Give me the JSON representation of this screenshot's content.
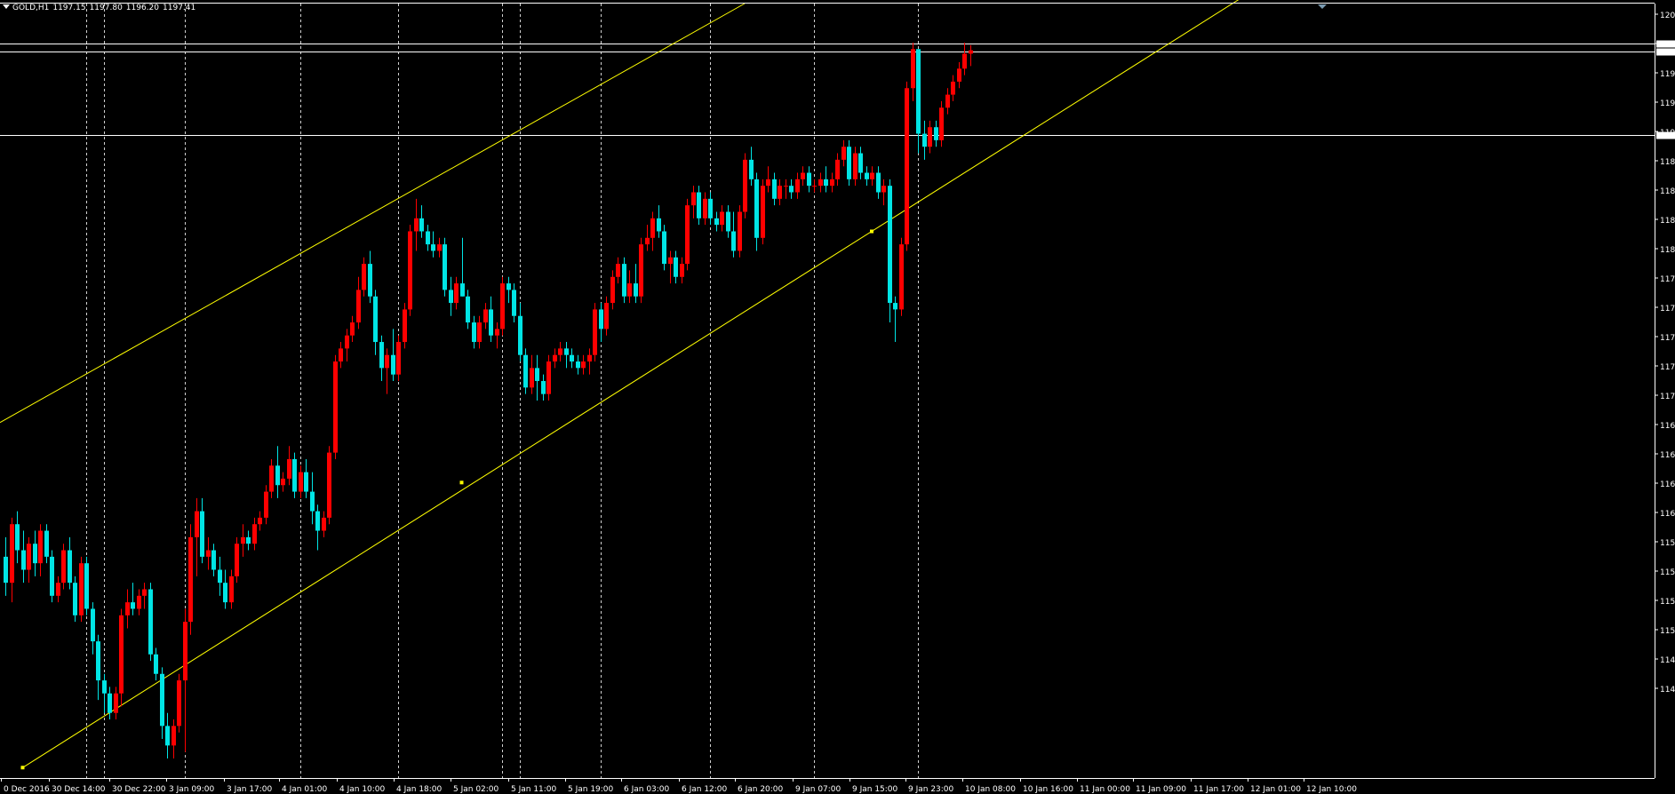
{
  "header": {
    "symbol": "GOLD,H1",
    "open": "1197.15",
    "high": "1197.80",
    "low": "1196.20",
    "close": "1197.41"
  },
  "colors": {
    "background": "#000000",
    "axis": "#ffffff",
    "bull_candle": "#ff0000",
    "bear_candle": "#00e5e5",
    "channel_line": "#ffff00",
    "grid_vertical": "#d0d0d0"
  },
  "chart_data": {
    "type": "candlestick",
    "symbol": "GOLD",
    "timeframe": "H1",
    "ylim": [
      1141.5,
      1201.0
    ],
    "y_tick_labels": [
      "120",
      "119",
      "119",
      "119",
      "119",
      "118",
      "118",
      "118",
      "118",
      "117",
      "117",
      "117",
      "117",
      "117",
      "116",
      "116",
      "116",
      "116",
      "115",
      "115",
      "115",
      "115",
      "114",
      "114"
    ],
    "x_tick_labels": [
      "0 Dec 2016",
      "30 Dec 14:00",
      "30 Dec 22:00",
      "3 Jan 09:00",
      "3 Jan 17:00",
      "4 Jan 01:00",
      "4 Jan 10:00",
      "4 Jan 18:00",
      "5 Jan 02:00",
      "5 Jan 11:00",
      "5 Jan 19:00",
      "6 Jan 03:00",
      "6 Jan 12:00",
      "6 Jan 20:00",
      "9 Jan 07:00",
      "9 Jan 15:00",
      "9 Jan 23:00",
      "10 Jan 08:00",
      "10 Jan 16:00",
      "11 Jan 00:00",
      "11 Jan 09:00",
      "11 Jan 17:00",
      "12 Jan 01:00",
      "12 Jan 10:00"
    ],
    "horizontal_levels": [
      1197.9,
      1197.3,
      1190.9
    ],
    "channel": {
      "lower": {
        "start": [
          3,
          1142.3
        ],
        "end": [
          160,
          1186.3
        ]
      },
      "upper": {
        "start": [
          -25,
          1162.8
        ],
        "end": [
          128,
          1201.0
        ]
      },
      "anchor_point": [
        79,
        1164.2
      ]
    },
    "vertical_session_lines": [
      14,
      17,
      31,
      51,
      68,
      86,
      89,
      103,
      122,
      140,
      158
    ],
    "candles": [
      [
        1158.5,
        1160.0,
        1155.5,
        1156.5
      ],
      [
        1156.5,
        1161.5,
        1155.0,
        1161.0
      ],
      [
        1161.0,
        1162.0,
        1158.0,
        1159.0
      ],
      [
        1159.0,
        1160.5,
        1156.5,
        1157.5
      ],
      [
        1157.5,
        1160.0,
        1156.5,
        1159.5
      ],
      [
        1159.5,
        1160.5,
        1157.0,
        1158.0
      ],
      [
        1158.0,
        1161.0,
        1157.0,
        1160.5
      ],
      [
        1160.5,
        1161.0,
        1158.0,
        1158.5
      ],
      [
        1158.5,
        1159.0,
        1155.0,
        1155.5
      ],
      [
        1155.5,
        1157.0,
        1155.0,
        1156.5
      ],
      [
        1156.5,
        1159.5,
        1156.0,
        1159.0
      ],
      [
        1159.0,
        1160.0,
        1156.0,
        1156.5
      ],
      [
        1156.5,
        1157.0,
        1153.5,
        1154.0
      ],
      [
        1154.0,
        1158.5,
        1153.5,
        1158.0
      ],
      [
        1158.0,
        1158.5,
        1154.0,
        1154.5
      ],
      [
        1154.5,
        1155.0,
        1151.0,
        1152.0
      ],
      [
        1152.0,
        1152.5,
        1147.5,
        1149.0
      ],
      [
        1149.0,
        1149.5,
        1146.5,
        1148.0
      ],
      [
        1148.0,
        1148.5,
        1146.0,
        1146.5
      ],
      [
        1146.5,
        1148.5,
        1146.0,
        1148.0
      ],
      [
        1148.0,
        1154.5,
        1147.0,
        1154.0
      ],
      [
        1154.0,
        1156.0,
        1153.0,
        1155.0
      ],
      [
        1155.0,
        1156.5,
        1154.0,
        1154.5
      ],
      [
        1154.5,
        1156.0,
        1154.0,
        1155.5
      ],
      [
        1155.5,
        1156.5,
        1154.5,
        1156.0
      ],
      [
        1156.0,
        1156.5,
        1150.5,
        1151.0
      ],
      [
        1151.0,
        1151.5,
        1149.0,
        1149.5
      ],
      [
        1149.5,
        1150.0,
        1144.5,
        1145.5
      ],
      [
        1145.5,
        1146.5,
        1143.0,
        1144.0
      ],
      [
        1144.0,
        1146.0,
        1143.0,
        1145.5
      ],
      [
        1145.5,
        1149.5,
        1145.0,
        1149.0
      ],
      [
        1149.0,
        1154.5,
        1143.5,
        1153.5
      ],
      [
        1153.5,
        1161.0,
        1152.5,
        1160.0
      ],
      [
        1160.0,
        1163.0,
        1157.0,
        1162.0
      ],
      [
        1162.0,
        1163.0,
        1158.0,
        1158.5
      ],
      [
        1158.5,
        1160.0,
        1157.5,
        1159.0
      ],
      [
        1159.0,
        1159.5,
        1157.0,
        1157.5
      ],
      [
        1157.5,
        1158.5,
        1155.5,
        1156.5
      ],
      [
        1156.5,
        1157.5,
        1154.5,
        1155.0
      ],
      [
        1155.0,
        1157.5,
        1154.5,
        1157.0
      ],
      [
        1157.0,
        1160.0,
        1156.5,
        1159.5
      ],
      [
        1159.5,
        1161.0,
        1158.5,
        1160.0
      ],
      [
        1160.0,
        1160.5,
        1159.0,
        1159.5
      ],
      [
        1159.5,
        1161.5,
        1159.0,
        1161.0
      ],
      [
        1161.0,
        1162.0,
        1160.5,
        1161.5
      ],
      [
        1161.5,
        1164.0,
        1161.0,
        1163.5
      ],
      [
        1163.5,
        1166.0,
        1163.0,
        1165.5
      ],
      [
        1165.5,
        1167.0,
        1163.0,
        1164.0
      ],
      [
        1164.0,
        1165.0,
        1163.5,
        1164.5
      ],
      [
        1164.5,
        1167.0,
        1164.0,
        1166.0
      ],
      [
        1166.0,
        1166.5,
        1163.0,
        1163.5
      ],
      [
        1163.5,
        1165.5,
        1163.0,
        1165.0
      ],
      [
        1165.0,
        1166.0,
        1163.0,
        1163.5
      ],
      [
        1163.5,
        1165.0,
        1161.0,
        1162.0
      ],
      [
        1162.0,
        1162.5,
        1159.0,
        1160.5
      ],
      [
        1160.5,
        1162.0,
        1160.0,
        1161.5
      ],
      [
        1161.5,
        1167.0,
        1161.0,
        1166.5
      ],
      [
        1166.5,
        1174.0,
        1166.0,
        1173.5
      ],
      [
        1173.5,
        1175.0,
        1173.0,
        1174.5
      ],
      [
        1174.5,
        1176.0,
        1173.5,
        1175.5
      ],
      [
        1175.5,
        1177.0,
        1175.0,
        1176.5
      ],
      [
        1176.5,
        1180.0,
        1176.0,
        1179.0
      ],
      [
        1179.0,
        1181.5,
        1178.5,
        1181.0
      ],
      [
        1181.0,
        1182.0,
        1178.0,
        1178.5
      ],
      [
        1178.5,
        1179.0,
        1174.0,
        1175.0
      ],
      [
        1175.0,
        1175.5,
        1172.0,
        1173.0
      ],
      [
        1173.0,
        1174.5,
        1171.0,
        1174.0
      ],
      [
        1174.0,
        1176.0,
        1172.0,
        1172.5
      ],
      [
        1172.5,
        1175.5,
        1172.0,
        1175.0
      ],
      [
        1175.0,
        1178.0,
        1174.5,
        1177.5
      ],
      [
        1177.5,
        1184.0,
        1177.0,
        1183.5
      ],
      [
        1183.5,
        1186.0,
        1182.0,
        1184.5
      ],
      [
        1184.5,
        1185.5,
        1183.0,
        1183.5
      ],
      [
        1183.5,
        1184.0,
        1182.0,
        1182.5
      ],
      [
        1182.5,
        1183.5,
        1181.5,
        1182.0
      ],
      [
        1182.0,
        1183.0,
        1181.5,
        1182.5
      ],
      [
        1182.5,
        1183.0,
        1178.5,
        1179.0
      ],
      [
        1179.0,
        1180.0,
        1177.0,
        1178.0
      ],
      [
        1178.0,
        1180.0,
        1177.5,
        1179.5
      ],
      [
        1179.5,
        1183.0,
        1178.5,
        1178.5
      ],
      [
        1178.5,
        1179.0,
        1176.0,
        1176.5
      ],
      [
        1176.5,
        1177.0,
        1174.5,
        1175.0
      ],
      [
        1175.0,
        1177.0,
        1174.5,
        1176.5
      ],
      [
        1176.5,
        1178.0,
        1176.0,
        1177.5
      ],
      [
        1177.5,
        1178.5,
        1175.0,
        1175.5
      ],
      [
        1175.5,
        1176.5,
        1174.5,
        1176.0
      ],
      [
        1176.0,
        1180.0,
        1175.5,
        1179.5
      ],
      [
        1179.5,
        1180.0,
        1178.0,
        1179.0
      ],
      [
        1179.0,
        1179.5,
        1176.5,
        1177.0
      ],
      [
        1177.0,
        1178.0,
        1173.5,
        1174.0
      ],
      [
        1174.0,
        1174.5,
        1171.0,
        1171.5
      ],
      [
        1171.5,
        1174.0,
        1171.0,
        1173.0
      ],
      [
        1173.0,
        1174.0,
        1170.5,
        1172.0
      ],
      [
        1172.0,
        1172.5,
        1170.5,
        1171.0
      ],
      [
        1171.0,
        1174.0,
        1170.5,
        1173.5
      ],
      [
        1173.5,
        1174.5,
        1173.0,
        1174.0
      ],
      [
        1174.0,
        1175.0,
        1173.5,
        1174.5
      ],
      [
        1174.5,
        1175.0,
        1173.0,
        1174.0
      ],
      [
        1174.0,
        1174.5,
        1173.0,
        1173.5
      ],
      [
        1173.5,
        1174.0,
        1172.5,
        1173.0
      ],
      [
        1173.0,
        1174.0,
        1172.5,
        1173.5
      ],
      [
        1173.5,
        1174.5,
        1172.5,
        1174.0
      ],
      [
        1174.0,
        1178.0,
        1173.5,
        1177.5
      ],
      [
        1177.5,
        1178.0,
        1175.0,
        1176.0
      ],
      [
        1176.0,
        1178.5,
        1175.5,
        1178.0
      ],
      [
        1178.0,
        1180.5,
        1177.5,
        1180.0
      ],
      [
        1180.0,
        1181.5,
        1179.5,
        1181.0
      ],
      [
        1181.0,
        1181.5,
        1178.0,
        1178.5
      ],
      [
        1178.5,
        1180.5,
        1178.0,
        1179.5
      ],
      [
        1179.5,
        1181.0,
        1178.0,
        1178.5
      ],
      [
        1178.5,
        1183.0,
        1178.0,
        1182.5
      ],
      [
        1182.5,
        1184.0,
        1182.0,
        1183.0
      ],
      [
        1183.0,
        1185.0,
        1182.0,
        1184.5
      ],
      [
        1184.5,
        1185.5,
        1183.0,
        1183.5
      ],
      [
        1183.5,
        1184.0,
        1180.5,
        1181.0
      ],
      [
        1181.0,
        1182.0,
        1179.5,
        1181.5
      ],
      [
        1181.5,
        1182.0,
        1179.5,
        1180.0
      ],
      [
        1180.0,
        1181.5,
        1179.5,
        1181.0
      ],
      [
        1181.0,
        1186.0,
        1180.5,
        1185.5
      ],
      [
        1185.5,
        1187.0,
        1184.5,
        1186.5
      ],
      [
        1186.5,
        1187.0,
        1184.0,
        1184.5
      ],
      [
        1184.5,
        1186.5,
        1184.0,
        1186.0
      ],
      [
        1186.0,
        1186.5,
        1184.0,
        1184.5
      ],
      [
        1184.5,
        1185.0,
        1183.5,
        1184.0
      ],
      [
        1184.0,
        1185.5,
        1183.5,
        1185.0
      ],
      [
        1185.0,
        1185.5,
        1183.0,
        1183.5
      ],
      [
        1183.5,
        1185.0,
        1181.5,
        1182.0
      ],
      [
        1182.0,
        1185.5,
        1181.5,
        1185.0
      ],
      [
        1185.0,
        1189.5,
        1184.5,
        1189.0
      ],
      [
        1189.0,
        1190.0,
        1187.0,
        1187.5
      ],
      [
        1187.5,
        1188.0,
        1182.0,
        1183.0
      ],
      [
        1183.0,
        1187.5,
        1182.5,
        1187.0
      ],
      [
        1187.0,
        1188.5,
        1186.5,
        1187.5
      ],
      [
        1187.5,
        1188.0,
        1185.5,
        1186.0
      ],
      [
        1186.0,
        1187.5,
        1185.5,
        1187.0
      ],
      [
        1187.0,
        1187.5,
        1186.0,
        1187.0
      ],
      [
        1187.0,
        1187.5,
        1186.0,
        1186.5
      ],
      [
        1186.5,
        1188.0,
        1186.0,
        1187.5
      ],
      [
        1187.5,
        1188.5,
        1187.0,
        1188.0
      ],
      [
        1188.0,
        1188.5,
        1186.5,
        1187.0
      ],
      [
        1187.0,
        1187.5,
        1186.5,
        1187.0
      ],
      [
        1187.0,
        1188.0,
        1186.5,
        1187.5
      ],
      [
        1187.5,
        1188.5,
        1186.5,
        1187.0
      ],
      [
        1187.0,
        1188.0,
        1186.5,
        1187.5
      ],
      [
        1187.5,
        1189.5,
        1187.0,
        1189.0
      ],
      [
        1189.0,
        1190.5,
        1188.5,
        1190.0
      ],
      [
        1190.0,
        1190.5,
        1187.0,
        1187.5
      ],
      [
        1187.5,
        1190.0,
        1187.0,
        1189.5
      ],
      [
        1189.5,
        1190.0,
        1187.5,
        1188.0
      ],
      [
        1188.0,
        1188.5,
        1187.0,
        1187.5
      ],
      [
        1187.5,
        1188.5,
        1187.0,
        1188.0
      ],
      [
        1188.0,
        1188.5,
        1186.0,
        1186.5
      ],
      [
        1186.5,
        1187.5,
        1185.5,
        1187.0
      ],
      [
        1187.0,
        1187.5,
        1176.5,
        1178.0
      ],
      [
        1178.0,
        1178.5,
        1175.0,
        1177.5
      ],
      [
        1177.5,
        1183.0,
        1177.0,
        1182.5
      ],
      [
        1182.5,
        1195.0,
        1182.0,
        1194.5
      ],
      [
        1194.5,
        1198.0,
        1193.5,
        1197.5
      ],
      [
        1197.5,
        1197.5,
        1189.5,
        1191.0
      ],
      [
        1191.0,
        1192.0,
        1189.0,
        1190.0
      ],
      [
        1190.0,
        1192.0,
        1189.5,
        1191.5
      ],
      [
        1191.5,
        1192.0,
        1190.0,
        1190.5
      ],
      [
        1190.5,
        1193.5,
        1190.0,
        1193.0
      ],
      [
        1193.0,
        1194.5,
        1192.5,
        1194.0
      ],
      [
        1194.0,
        1195.5,
        1193.5,
        1195.0
      ],
      [
        1195.0,
        1196.5,
        1194.5,
        1196.0
      ],
      [
        1196.0,
        1198.0,
        1195.5,
        1197.15
      ],
      [
        1197.15,
        1197.8,
        1196.2,
        1197.41
      ]
    ]
  }
}
